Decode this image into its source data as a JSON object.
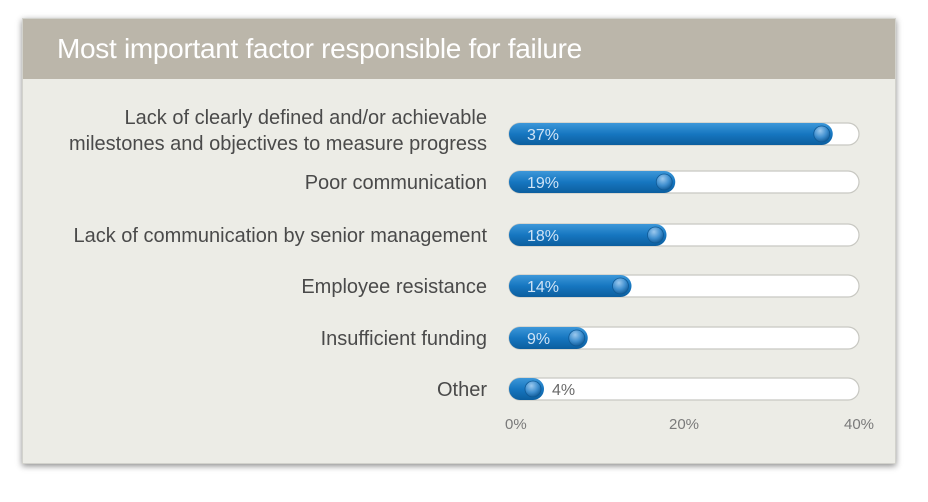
{
  "chart_data": {
    "type": "bar",
    "orientation": "horizontal",
    "title": "Most important factor responsible for failure",
    "categories": [
      [
        "Lack of clearly defined and/or achievable",
        "milestones and objectives to measure progress"
      ],
      [
        "Poor communication"
      ],
      [
        "Lack of communication by senior management"
      ],
      [
        "Employee resistance"
      ],
      [
        "Insufficient funding"
      ],
      [
        "Other"
      ]
    ],
    "values": [
      37,
      19,
      18,
      14,
      9,
      4
    ],
    "value_labels": [
      "37%",
      "19%",
      "18%",
      "14%",
      "9%",
      "4%"
    ],
    "xlim": [
      0,
      40
    ],
    "x_ticks": [
      "0%",
      "20%",
      "40%"
    ],
    "bar_color": "#1676c0",
    "track_color": "#ffffff",
    "grid": false,
    "legend": "none"
  }
}
